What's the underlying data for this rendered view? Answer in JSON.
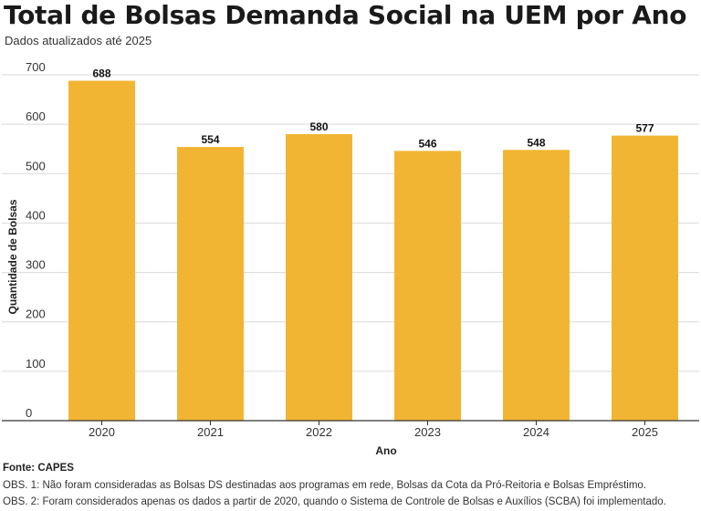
{
  "title": "Total de Bolsas Demanda Social na UEM por Ano",
  "subtitle": "Dados atualizados até 2025",
  "colors": {
    "bar": "#f2b533",
    "grid": "#d9d9d9",
    "axis": "#333333"
  },
  "chart_data": {
    "type": "bar",
    "categories": [
      "2020",
      "2021",
      "2022",
      "2023",
      "2024",
      "2025"
    ],
    "values": [
      688,
      554,
      580,
      546,
      548,
      577
    ],
    "xlabel": "Ano",
    "ylabel": "Quantidade de Bolsas",
    "ylim": [
      0,
      700
    ],
    "yticks": [
      0,
      100,
      200,
      300,
      400,
      500,
      600,
      700
    ],
    "grid": true,
    "data_labels": true
  },
  "footer": {
    "source": "Fonte: CAPES",
    "note1": "OBS. 1: Não foram consideradas as Bolsas DS destinadas aos programas em rede, Bolsas da Cota da Pró-Reitoria e Bolsas Empréstimo.",
    "note2": "OBS. 2: Foram considerados apenas os dados a partir de 2020, quando o Sistema de Controle de Bolsas e Auxílios (SCBA) foi implementado."
  }
}
